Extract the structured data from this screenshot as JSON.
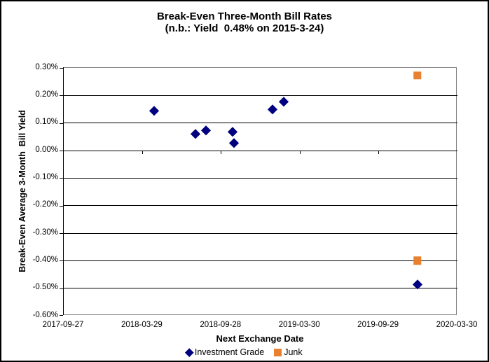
{
  "chart_data": {
    "type": "scatter",
    "title_line1": "Break-Even Three-Month Bill Rates",
    "title_line2": "(n.b.: Yield  0.48% on 2015-3-24)",
    "xlabel": "Next Exchange Date",
    "ylabel": "Break-Even Average 3-Month  Bill Yield",
    "x_ticks": [
      "2017-09-27",
      "2018-03-29",
      "2018-09-28",
      "2019-03-30",
      "2019-09-29",
      "2020-03-30"
    ],
    "x_range": [
      "2017-09-27",
      "2020-03-30"
    ],
    "y_ticks": [
      "0.30%",
      "0.20%",
      "0.10%",
      "0.00%",
      "-0.10%",
      "-0.20%",
      "-0.30%",
      "-0.40%",
      "-0.50%",
      "-0.60%"
    ],
    "y_range": [
      -0.6,
      0.3
    ],
    "grid": true,
    "legend_position": "bottom",
    "colors": {
      "gridline": "#000000",
      "plot_border": "#808080",
      "axis": "#000000",
      "investment_grade": "#000080",
      "junk": "#E8802F"
    },
    "series": [
      {
        "name": "Investment Grade",
        "marker": "diamond",
        "color": "#000080",
        "points": [
          {
            "x": "2018-04-25",
            "y": 0.145
          },
          {
            "x": "2018-07-30",
            "y": 0.062
          },
          {
            "x": "2018-08-23",
            "y": 0.073
          },
          {
            "x": "2018-10-25",
            "y": 0.068
          },
          {
            "x": "2018-10-27",
            "y": 0.028
          },
          {
            "x": "2019-01-25",
            "y": 0.151
          },
          {
            "x": "2019-02-21",
            "y": 0.177
          },
          {
            "x": "2019-12-28",
            "y": -0.485
          }
        ]
      },
      {
        "name": "Junk",
        "marker": "square",
        "color": "#E8802F",
        "points": [
          {
            "x": "2019-12-28",
            "y": 0.273
          },
          {
            "x": "2019-12-28",
            "y": -0.4
          }
        ]
      }
    ]
  }
}
